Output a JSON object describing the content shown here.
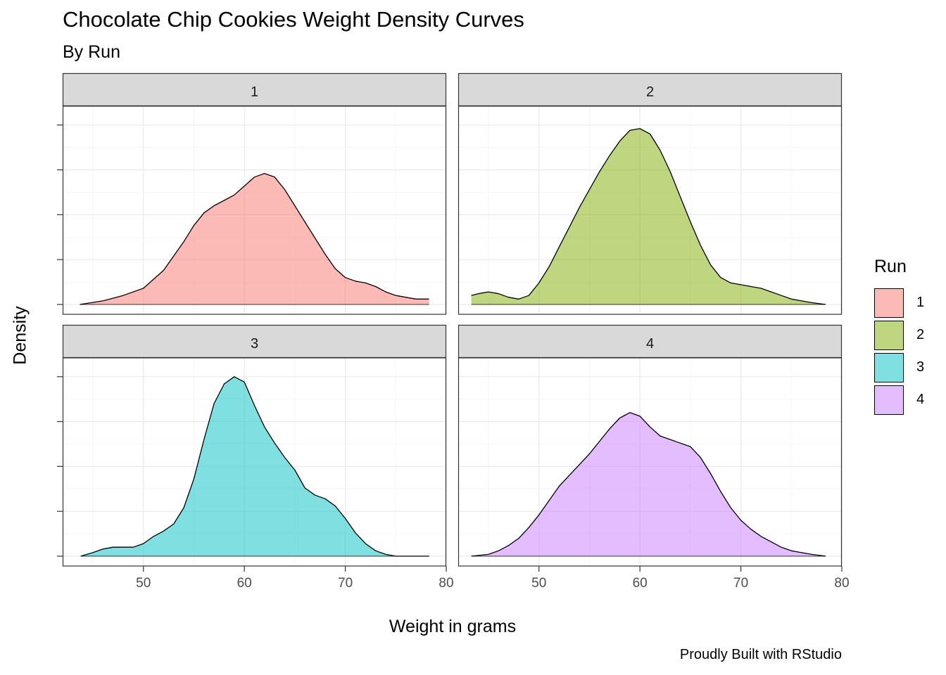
{
  "chart_data": {
    "type": "area",
    "title": "Chocolate Chip Cookies Weight Density Curves",
    "subtitle": "By Run",
    "xlabel": "Weight in grams",
    "ylabel": "Density",
    "caption": "Proudly Built with RStudio",
    "xlim": [
      42,
      80
    ],
    "ylim": [
      0,
      0.105
    ],
    "x_ticks": [
      "50",
      "60",
      "70",
      "80"
    ],
    "y_ticks_labels_shown": false,
    "grid": true,
    "legend": {
      "title": "Run",
      "position": "right",
      "entries": [
        "1",
        "2",
        "3",
        "4"
      ]
    },
    "colors": {
      "1": "#F8766D",
      "2": "#7CAE00",
      "3": "#00BFC4",
      "4": "#C77CFF"
    },
    "fill_alpha": 0.5,
    "panels": [
      {
        "run": "1",
        "label": "1",
        "points": [
          [
            43.7,
            0.0
          ],
          [
            46,
            0.002
          ],
          [
            48,
            0.005
          ],
          [
            50,
            0.009
          ],
          [
            52,
            0.019
          ],
          [
            54,
            0.035
          ],
          [
            55,
            0.044
          ],
          [
            56,
            0.051
          ],
          [
            57,
            0.055
          ],
          [
            58,
            0.058
          ],
          [
            59,
            0.061
          ],
          [
            60,
            0.066
          ],
          [
            61,
            0.071
          ],
          [
            62,
            0.073
          ],
          [
            63,
            0.071
          ],
          [
            64,
            0.064
          ],
          [
            65,
            0.055
          ],
          [
            66,
            0.046
          ],
          [
            67,
            0.037
          ],
          [
            68,
            0.028
          ],
          [
            69,
            0.02
          ],
          [
            70,
            0.015
          ],
          [
            71,
            0.013
          ],
          [
            72,
            0.012
          ],
          [
            73,
            0.01
          ],
          [
            74,
            0.007
          ],
          [
            75,
            0.005
          ],
          [
            76,
            0.004
          ],
          [
            77,
            0.003
          ],
          [
            78.3,
            0.003
          ]
        ]
      },
      {
        "run": "2",
        "label": "2",
        "points": [
          [
            43.3,
            0.005
          ],
          [
            44,
            0.006
          ],
          [
            45,
            0.007
          ],
          [
            46,
            0.006
          ],
          [
            47,
            0.004
          ],
          [
            48,
            0.003
          ],
          [
            49,
            0.005
          ],
          [
            50,
            0.012
          ],
          [
            51,
            0.021
          ],
          [
            52,
            0.032
          ],
          [
            53,
            0.043
          ],
          [
            54,
            0.054
          ],
          [
            55,
            0.064
          ],
          [
            56,
            0.074
          ],
          [
            57,
            0.083
          ],
          [
            58,
            0.091
          ],
          [
            59,
            0.097
          ],
          [
            60,
            0.098
          ],
          [
            61,
            0.095
          ],
          [
            62,
            0.086
          ],
          [
            63,
            0.074
          ],
          [
            64,
            0.06
          ],
          [
            65,
            0.046
          ],
          [
            66,
            0.033
          ],
          [
            67,
            0.022
          ],
          [
            68,
            0.015
          ],
          [
            69,
            0.012
          ],
          [
            70,
            0.011
          ],
          [
            71,
            0.01
          ],
          [
            72,
            0.009
          ],
          [
            73,
            0.007
          ],
          [
            74,
            0.005
          ],
          [
            75,
            0.003
          ],
          [
            76,
            0.002
          ],
          [
            77,
            0.001
          ],
          [
            78.4,
            0.0
          ]
        ]
      },
      {
        "run": "3",
        "label": "3",
        "points": [
          [
            43.8,
            0.0
          ],
          [
            45,
            0.002
          ],
          [
            46,
            0.004
          ],
          [
            47,
            0.005
          ],
          [
            48,
            0.005
          ],
          [
            49,
            0.005
          ],
          [
            50,
            0.007
          ],
          [
            51,
            0.011
          ],
          [
            52,
            0.014
          ],
          [
            53,
            0.018
          ],
          [
            54,
            0.027
          ],
          [
            55,
            0.043
          ],
          [
            56,
            0.065
          ],
          [
            57,
            0.085
          ],
          [
            58,
            0.096
          ],
          [
            59,
            0.1
          ],
          [
            60,
            0.097
          ],
          [
            61,
            0.084
          ],
          [
            62,
            0.072
          ],
          [
            63,
            0.063
          ],
          [
            64,
            0.055
          ],
          [
            65,
            0.048
          ],
          [
            66,
            0.038
          ],
          [
            67,
            0.034
          ],
          [
            68,
            0.032
          ],
          [
            69,
            0.028
          ],
          [
            70,
            0.021
          ],
          [
            71,
            0.013
          ],
          [
            72,
            0.007
          ],
          [
            73,
            0.003
          ],
          [
            74,
            0.001
          ],
          [
            75,
            0.0
          ],
          [
            76,
            0.0
          ],
          [
            78.3,
            0.0
          ]
        ]
      },
      {
        "run": "4",
        "label": "4",
        "points": [
          [
            43.3,
            0.0
          ],
          [
            45,
            0.001
          ],
          [
            46,
            0.003
          ],
          [
            47,
            0.006
          ],
          [
            48,
            0.01
          ],
          [
            49,
            0.016
          ],
          [
            50,
            0.023
          ],
          [
            51,
            0.031
          ],
          [
            52,
            0.039
          ],
          [
            53,
            0.045
          ],
          [
            54,
            0.051
          ],
          [
            55,
            0.057
          ],
          [
            56,
            0.064
          ],
          [
            57,
            0.071
          ],
          [
            58,
            0.077
          ],
          [
            59,
            0.08
          ],
          [
            60,
            0.078
          ],
          [
            61,
            0.072
          ],
          [
            62,
            0.067
          ],
          [
            63,
            0.065
          ],
          [
            64,
            0.063
          ],
          [
            65,
            0.061
          ],
          [
            66,
            0.055
          ],
          [
            67,
            0.046
          ],
          [
            68,
            0.036
          ],
          [
            69,
            0.027
          ],
          [
            70,
            0.02
          ],
          [
            71,
            0.015
          ],
          [
            72,
            0.011
          ],
          [
            73,
            0.008
          ],
          [
            74,
            0.005
          ],
          [
            75,
            0.003
          ],
          [
            76,
            0.002
          ],
          [
            77,
            0.001
          ],
          [
            78.4,
            0.0
          ]
        ]
      }
    ]
  }
}
